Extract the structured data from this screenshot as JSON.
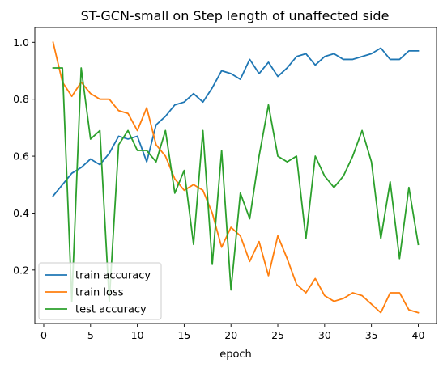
{
  "chart_data": {
    "type": "line",
    "title": "ST-GCN-small on Step length of unaffected side",
    "xlabel": "epoch",
    "ylabel": "",
    "xlim": [
      -0.95,
      41.95
    ],
    "ylim": [
      0.012,
      1.052
    ],
    "xticks": [
      0,
      5,
      10,
      15,
      20,
      25,
      30,
      35,
      40
    ],
    "yticks": [
      0.2,
      0.4,
      0.6,
      0.8,
      1.0
    ],
    "ytick_labels": [
      "0.2",
      "0.4",
      "0.6",
      "0.8",
      "1.0"
    ],
    "grid": false,
    "legend_position": "lower-left",
    "x": [
      1,
      2,
      3,
      4,
      5,
      6,
      7,
      8,
      9,
      10,
      11,
      12,
      13,
      14,
      15,
      16,
      17,
      18,
      19,
      20,
      21,
      22,
      23,
      24,
      25,
      26,
      27,
      28,
      29,
      30,
      31,
      32,
      33,
      34,
      35,
      36,
      37,
      38,
      39,
      40
    ],
    "series": [
      {
        "name": "train accuracy",
        "color": "#1f77b4",
        "values": [
          0.46,
          0.5,
          0.54,
          0.56,
          0.59,
          0.57,
          0.61,
          0.67,
          0.66,
          0.67,
          0.58,
          0.71,
          0.74,
          0.78,
          0.79,
          0.82,
          0.79,
          0.84,
          0.9,
          0.89,
          0.87,
          0.94,
          0.89,
          0.93,
          0.88,
          0.91,
          0.95,
          0.96,
          0.92,
          0.95,
          0.96,
          0.94,
          0.94,
          0.95,
          0.96,
          0.98,
          0.94,
          0.94,
          0.97,
          0.97
        ]
      },
      {
        "name": "train loss",
        "color": "#ff7f0e",
        "values": [
          1.0,
          0.86,
          0.81,
          0.86,
          0.82,
          0.8,
          0.8,
          0.76,
          0.75,
          0.69,
          0.77,
          0.64,
          0.6,
          0.52,
          0.48,
          0.5,
          0.48,
          0.4,
          0.28,
          0.35,
          0.32,
          0.23,
          0.3,
          0.18,
          0.32,
          0.24,
          0.15,
          0.12,
          0.17,
          0.11,
          0.09,
          0.1,
          0.12,
          0.11,
          0.08,
          0.05,
          0.12,
          0.12,
          0.06,
          0.05
        ]
      },
      {
        "name": "test accuracy",
        "color": "#2ca02c",
        "values": [
          0.91,
          0.91,
          0.09,
          0.91,
          0.66,
          0.69,
          0.09,
          0.64,
          0.69,
          0.62,
          0.62,
          0.58,
          0.69,
          0.47,
          0.55,
          0.29,
          0.69,
          0.22,
          0.62,
          0.13,
          0.47,
          0.38,
          0.6,
          0.78,
          0.6,
          0.58,
          0.6,
          0.31,
          0.6,
          0.53,
          0.49,
          0.53,
          0.6,
          0.69,
          0.58,
          0.31,
          0.51,
          0.24,
          0.49,
          0.29
        ]
      }
    ]
  }
}
